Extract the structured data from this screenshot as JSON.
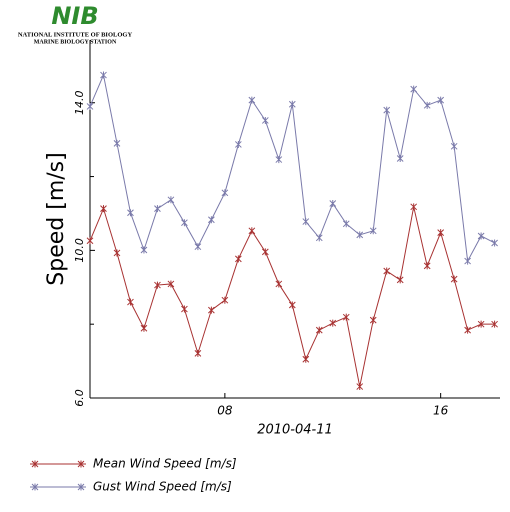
{
  "header": {
    "logo": "NIB",
    "line1": "NATIONAL INSTITUTE OF BIOLOGY",
    "line2": "MARINE BIOLOGY STATION"
  },
  "chart_data": {
    "type": "line",
    "xlabel": "2010-04-11",
    "ylabel": "Speed [m/s]",
    "x": [
      3,
      3.5,
      4,
      4.5,
      5,
      5.5,
      6,
      6.5,
      7,
      7.5,
      8,
      8.5,
      9,
      9.5,
      10,
      10.5,
      11,
      11.5,
      12,
      12.5,
      13,
      13.5,
      14,
      14.5,
      15,
      15.5,
      16,
      16.5,
      17,
      17.5,
      18
    ],
    "xlim": [
      3,
      18.2
    ],
    "xticks": [
      {
        "value": 8,
        "label": "08"
      },
      {
        "value": 16,
        "label": "16"
      }
    ],
    "ylim": [
      6,
      15.7
    ],
    "yticks": [
      {
        "value": 6,
        "label": "6.0"
      },
      {
        "value": 10,
        "label": "10.0"
      },
      {
        "value": 14,
        "label": "14.0"
      }
    ],
    "yminorticks": [
      8,
      12
    ],
    "series": [
      {
        "name": "Mean Wind Speed [m/s]",
        "color": "#a83232",
        "values": [
          10.26,
          11.13,
          9.93,
          8.6,
          7.89,
          9.06,
          9.09,
          8.41,
          7.21,
          8.38,
          8.65,
          9.77,
          10.53,
          9.96,
          9.09,
          8.52,
          7.05,
          7.84,
          8.03,
          8.19,
          6.31,
          8.11,
          9.44,
          9.2,
          11.18,
          9.58,
          10.48,
          9.22,
          7.84,
          8.0,
          8.0
        ]
      },
      {
        "name": "Gust Wind Speed [m/s]",
        "color": "#7a7aaa",
        "values": [
          13.9,
          14.75,
          12.9,
          11.02,
          10.01,
          11.13,
          11.37,
          10.75,
          10.1,
          10.83,
          11.56,
          12.87,
          14.07,
          13.52,
          12.46,
          13.96,
          10.78,
          10.34,
          11.27,
          10.72,
          10.42,
          10.53,
          13.8,
          12.49,
          14.37,
          13.93,
          14.07,
          12.82,
          9.71,
          10.39,
          10.2
        ]
      }
    ]
  }
}
